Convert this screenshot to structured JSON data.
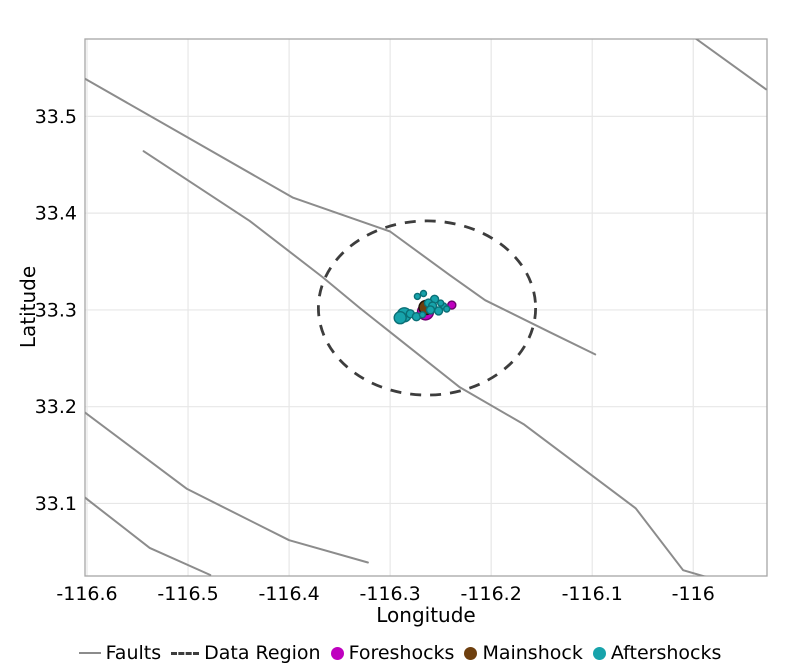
{
  "figure": {
    "xlabel": "Longitude",
    "ylabel": "Latitude"
  },
  "legend": {
    "items": [
      {
        "label": "Faults",
        "type": "line",
        "color": "#8c8c8c"
      },
      {
        "label": "Data Region",
        "type": "dashed-line",
        "color": "#3d3d3d"
      },
      {
        "label": "Foreshocks",
        "type": "dot",
        "color": "#bf00bf"
      },
      {
        "label": "Mainshock",
        "type": "dot",
        "color": "#6e3f0e"
      },
      {
        "label": "Aftershocks",
        "type": "dot",
        "color": "#17a3ab"
      }
    ]
  },
  "colors": {
    "grid": "#e7e7e7",
    "border": "#a6a6a6",
    "fault": "#8c8c8c",
    "data_region": "#3d3d3d",
    "foreshock_fill": "#bf00bf",
    "foreshock_stroke": "#6d006d",
    "mainshock_fill": "#6e3f0e",
    "mainshock_stroke": "#1f1208",
    "aftershock_fill": "#17a3ab",
    "aftershock_stroke": "#0b6f76",
    "text": "#000000"
  },
  "chart_data": {
    "type": "scatter",
    "title": "",
    "xlabel": "Longitude",
    "ylabel": "Latitude",
    "xlim": [
      -116.602,
      -115.927
    ],
    "ylim": [
      33.025,
      33.58
    ],
    "grid": true,
    "legend_position": "bottom",
    "x_ticks": [
      -116.6,
      -116.5,
      -116.4,
      -116.3,
      -116.2,
      -116.1,
      -116.0
    ],
    "x_tick_labels": [
      "-116.6",
      "-116.5",
      "-116.4",
      "-116.3",
      "-116.2",
      "-116.1",
      "-116"
    ],
    "y_ticks": [
      33.1,
      33.2,
      33.3,
      33.4,
      33.5
    ],
    "y_tick_labels": [
      "33.1",
      "33.2",
      "33.3",
      "33.4",
      "33.5"
    ],
    "faults": [
      [
        [
          -116.602,
          33.539
        ],
        [
          -116.396,
          33.416
        ],
        [
          -116.3,
          33.381
        ],
        [
          -116.241,
          33.336
        ],
        [
          -116.206,
          33.31
        ],
        [
          -116.142,
          33.277
        ],
        [
          -116.097,
          33.254
        ]
      ],
      [
        [
          -116.544,
          33.464
        ],
        [
          -116.439,
          33.392
        ],
        [
          -116.367,
          33.334
        ],
        [
          -116.33,
          33.302
        ],
        [
          -116.231,
          33.22
        ],
        [
          -116.168,
          33.182
        ],
        [
          -116.057,
          33.095
        ],
        [
          -116.01,
          33.031
        ],
        [
          -115.987,
          33.024
        ]
      ],
      [
        [
          -116.602,
          33.194
        ],
        [
          -116.501,
          33.115
        ],
        [
          -116.4,
          33.062
        ],
        [
          -116.322,
          33.039
        ]
      ],
      [
        [
          -116.602,
          33.106
        ],
        [
          -116.538,
          33.054
        ],
        [
          -116.478,
          33.026
        ]
      ],
      [
        [
          -115.997,
          33.58
        ],
        [
          -115.928,
          33.528
        ]
      ]
    ],
    "data_region_circle": {
      "center": [
        -116.2635,
        33.302
      ],
      "rx_deg": 0.1075,
      "ry_deg": 0.09,
      "radius_km": 10
    },
    "series": [
      {
        "name": "Foreshocks",
        "fill": "#bf00bf",
        "stroke": "#6d006d",
        "points": [
          {
            "lon": -116.265,
            "lat": 33.298,
            "r": 8
          },
          {
            "lon": -116.239,
            "lat": 33.305,
            "r": 4
          }
        ]
      },
      {
        "name": "Mainshock",
        "fill": "#6e3f0e",
        "stroke": "#1f1208",
        "points": [
          {
            "lon": -116.2645,
            "lat": 33.3025,
            "r": 7
          }
        ]
      },
      {
        "name": "Aftershocks",
        "fill": "#17a3ab",
        "stroke": "#0b6f76",
        "points": [
          {
            "lon": -116.273,
            "lat": 33.314,
            "r": 3
          },
          {
            "lon": -116.267,
            "lat": 33.317,
            "r": 3
          },
          {
            "lon": -116.256,
            "lat": 33.311,
            "r": 4
          },
          {
            "lon": -116.262,
            "lat": 33.307,
            "r": 4
          },
          {
            "lon": -116.258,
            "lat": 33.304,
            "r": 4
          },
          {
            "lon": -116.252,
            "lat": 33.299,
            "r": 4
          },
          {
            "lon": -116.247,
            "lat": 33.304,
            "r": 3
          },
          {
            "lon": -116.244,
            "lat": 33.301,
            "r": 3
          },
          {
            "lon": -116.286,
            "lat": 33.295,
            "r": 7
          },
          {
            "lon": -116.29,
            "lat": 33.292,
            "r": 6
          },
          {
            "lon": -116.28,
            "lat": 33.296,
            "r": 4
          },
          {
            "lon": -116.274,
            "lat": 33.293,
            "r": 4
          },
          {
            "lon": -116.268,
            "lat": 33.295,
            "r": 3
          },
          {
            "lon": -116.26,
            "lat": 33.3,
            "r": 4
          },
          {
            "lon": -116.25,
            "lat": 33.307,
            "r": 3
          }
        ]
      }
    ]
  }
}
